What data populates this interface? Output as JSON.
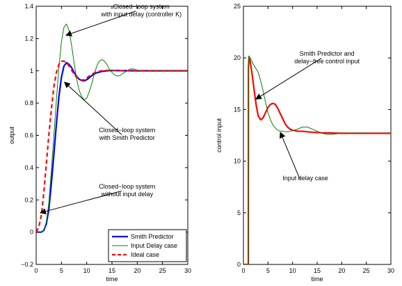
{
  "chart_data": [
    {
      "type": "line",
      "xlabel": "time",
      "ylabel": "output",
      "xlim": [
        0,
        30
      ],
      "ylim": [
        -0.2,
        1.4
      ],
      "xticks": [
        0,
        5,
        10,
        15,
        20,
        25,
        30
      ],
      "yticks": [
        -0.2,
        0,
        0.2,
        0.4,
        0.6,
        0.8,
        1,
        1.2,
        1.4
      ],
      "grid": false,
      "legend_position": "bottom-right",
      "series": [
        {
          "name": "Smith Predictor",
          "color": "#0000ff",
          "style": "solid-thick",
          "points": [
            [
              0,
              0
            ],
            [
              1,
              0
            ],
            [
              1.5,
              0.01
            ],
            [
              2,
              0.05
            ],
            [
              2.5,
              0.14
            ],
            [
              3,
              0.3
            ],
            [
              3.5,
              0.48
            ],
            [
              4,
              0.67
            ],
            [
              4.5,
              0.84
            ],
            [
              5,
              0.96
            ],
            [
              5.5,
              1.03
            ],
            [
              6,
              1.05
            ],
            [
              6.5,
              1.04
            ],
            [
              7,
              1.02
            ],
            [
              7.5,
              0.99
            ],
            [
              8,
              0.965
            ],
            [
              8.5,
              0.948
            ],
            [
              9,
              0.94
            ],
            [
              9.5,
              0.938
            ],
            [
              10,
              0.945
            ],
            [
              10.5,
              0.957
            ],
            [
              11,
              0.97
            ],
            [
              11.5,
              0.98
            ],
            [
              12,
              0.988
            ],
            [
              13,
              0.996
            ],
            [
              14,
              1.0
            ],
            [
              15,
              1.002
            ],
            [
              17,
              1.001
            ],
            [
              20,
              1.0
            ],
            [
              25,
              1.0
            ],
            [
              30,
              1.0
            ]
          ]
        },
        {
          "name": "Input Delay case",
          "color": "#008000",
          "style": "solid-thin",
          "points": [
            [
              0,
              0
            ],
            [
              1,
              0
            ],
            [
              1.5,
              0.01
            ],
            [
              2,
              0.06
            ],
            [
              2.5,
              0.18
            ],
            [
              3,
              0.38
            ],
            [
              3.5,
              0.6
            ],
            [
              4,
              0.82
            ],
            [
              4.5,
              1.02
            ],
            [
              5,
              1.18
            ],
            [
              5.5,
              1.27
            ],
            [
              6,
              1.29
            ],
            [
              6.5,
              1.25
            ],
            [
              7,
              1.16
            ],
            [
              7.5,
              1.05
            ],
            [
              8,
              0.95
            ],
            [
              8.5,
              0.88
            ],
            [
              9,
              0.84
            ],
            [
              9.5,
              0.82
            ],
            [
              10,
              0.83
            ],
            [
              10.5,
              0.87
            ],
            [
              11,
              0.92
            ],
            [
              11.5,
              0.98
            ],
            [
              12,
              1.03
            ],
            [
              12.5,
              1.06
            ],
            [
              13,
              1.07
            ],
            [
              13.5,
              1.06
            ],
            [
              14,
              1.04
            ],
            [
              14.5,
              1.01
            ],
            [
              15,
              0.99
            ],
            [
              15.5,
              0.975
            ],
            [
              16,
              0.968
            ],
            [
              16.5,
              0.97
            ],
            [
              17,
              0.98
            ],
            [
              17.5,
              0.99
            ],
            [
              18,
              1.0
            ],
            [
              18.5,
              1.01
            ],
            [
              19,
              1.012
            ],
            [
              19.5,
              1.01
            ],
            [
              20,
              1.004
            ],
            [
              21,
              0.996
            ],
            [
              22,
              0.998
            ],
            [
              23,
              1.002
            ],
            [
              24,
              1.001
            ],
            [
              26,
              1.0
            ],
            [
              30,
              1.0
            ]
          ]
        },
        {
          "name": "Ideal case",
          "color": "#ff0000",
          "style": "dashed-thick",
          "points": [
            [
              0,
              0
            ],
            [
              0.5,
              0.03
            ],
            [
              1,
              0.1
            ],
            [
              1.5,
              0.24
            ],
            [
              2,
              0.42
            ],
            [
              2.5,
              0.6
            ],
            [
              3,
              0.76
            ],
            [
              3.5,
              0.9
            ],
            [
              4,
              0.99
            ],
            [
              4.5,
              1.04
            ],
            [
              5,
              1.06
            ],
            [
              5.5,
              1.06
            ],
            [
              6,
              1.05
            ],
            [
              6.5,
              1.03
            ],
            [
              7,
              1.005
            ],
            [
              7.5,
              0.98
            ],
            [
              8,
              0.96
            ],
            [
              8.5,
              0.948
            ],
            [
              9,
              0.942
            ],
            [
              9.5,
              0.945
            ],
            [
              10,
              0.955
            ],
            [
              10.5,
              0.967
            ],
            [
              11,
              0.978
            ],
            [
              11.5,
              0.987
            ],
            [
              12,
              0.994
            ],
            [
              13,
              1.0
            ],
            [
              14,
              1.003
            ],
            [
              16,
              1.001
            ],
            [
              20,
              1.0
            ],
            [
              30,
              1.0
            ]
          ]
        }
      ],
      "annotations": [
        {
          "lines": [
            "Closed−loop system",
            "with input delay (controller K)"
          ],
          "text_at": [
            20.8,
            1.385
          ],
          "arrow_to": [
            5.9,
            1.22
          ]
        },
        {
          "lines": [
            "Closed−loop system",
            "with Smith Predictor"
          ],
          "text_at": [
            18.0,
            0.62
          ],
          "arrow_to": [
            5.6,
            0.93
          ]
        },
        {
          "lines": [
            "Closed−loop system",
            "without input delay"
          ],
          "text_at": [
            18.0,
            0.27
          ],
          "arrow_to": [
            0.8,
            0.12
          ]
        }
      ]
    },
    {
      "type": "line",
      "xlabel": "time",
      "ylabel": "control input",
      "xlim": [
        0,
        30
      ],
      "ylim": [
        0,
        25
      ],
      "xticks": [
        0,
        5,
        10,
        15,
        20,
        25,
        30
      ],
      "yticks": [
        0,
        5,
        10,
        15,
        20,
        25
      ],
      "grid": false,
      "series": [
        {
          "name": "Smith Predictor / delay-free",
          "color": "#ff0000",
          "style": "solid-thick",
          "points": [
            [
              0,
              0
            ],
            [
              1,
              0
            ],
            [
              1.02,
              19.0
            ],
            [
              1.15,
              20.1
            ],
            [
              1.4,
              19.6
            ],
            [
              1.8,
              18.3
            ],
            [
              2.2,
              16.8
            ],
            [
              2.6,
              15.4
            ],
            [
              3,
              14.4
            ],
            [
              3.5,
              14.0
            ],
            [
              4,
              14.2
            ],
            [
              4.5,
              14.7
            ],
            [
              5,
              15.2
            ],
            [
              5.5,
              15.5
            ],
            [
              6,
              15.6
            ],
            [
              6.5,
              15.5
            ],
            [
              7,
              15.1
            ],
            [
              7.5,
              14.6
            ],
            [
              8,
              14.1
            ],
            [
              8.5,
              13.6
            ],
            [
              9,
              13.3
            ],
            [
              9.5,
              13.1
            ],
            [
              10,
              13.0
            ],
            [
              11,
              12.9
            ],
            [
              12,
              12.9
            ],
            [
              14,
              12.8
            ],
            [
              16,
              12.75
            ],
            [
              20,
              12.7
            ],
            [
              25,
              12.7
            ],
            [
              30,
              12.7
            ]
          ]
        },
        {
          "name": "Input Delay case",
          "color": "#008000",
          "style": "solid-thin",
          "points": [
            [
              0,
              0
            ],
            [
              1,
              0
            ],
            [
              1.02,
              19.5
            ],
            [
              1.1,
              20.2
            ],
            [
              1.5,
              19.9
            ],
            [
              2,
              19.4
            ],
            [
              2.5,
              19.0
            ],
            [
              3,
              18.6
            ],
            [
              3.5,
              17.8
            ],
            [
              4,
              16.8
            ],
            [
              4.5,
              15.7
            ],
            [
              5,
              14.7
            ],
            [
              5.5,
              14.0
            ],
            [
              6,
              13.5
            ],
            [
              6.5,
              13.2
            ],
            [
              7,
              13.0
            ],
            [
              7.5,
              12.9
            ],
            [
              8,
              12.9
            ],
            [
              8.5,
              12.85
            ],
            [
              9,
              12.85
            ],
            [
              9.5,
              12.9
            ],
            [
              10,
              12.95
            ],
            [
              11,
              13.1
            ],
            [
              12,
              13.3
            ],
            [
              13,
              13.3
            ],
            [
              14,
              13.1
            ],
            [
              15,
              12.9
            ],
            [
              16,
              12.7
            ],
            [
              17,
              12.6
            ],
            [
              18,
              12.6
            ],
            [
              19,
              12.65
            ],
            [
              20,
              12.7
            ],
            [
              22,
              12.72
            ],
            [
              25,
              12.7
            ],
            [
              30,
              12.7
            ]
          ]
        }
      ],
      "annotations": [
        {
          "lines": [
            "Smith Predictor and",
            "delay−free control input"
          ],
          "text_at": [
            17.0,
            20.2
          ],
          "arrow_to": [
            2.5,
            16.0
          ]
        },
        {
          "lines": [
            "Input delay case"
          ],
          "text_at": [
            12.6,
            8.15
          ],
          "arrow_to": [
            7.5,
            12.8
          ]
        }
      ]
    }
  ]
}
